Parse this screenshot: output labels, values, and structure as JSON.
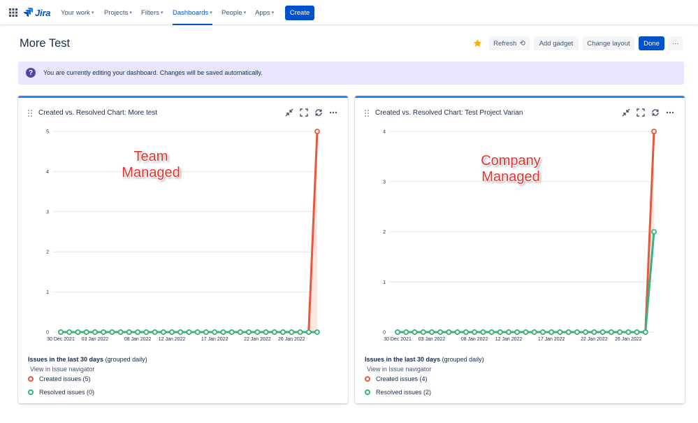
{
  "nav": {
    "logo": "Jira",
    "items": [
      "Your work",
      "Projects",
      "Filters",
      "Dashboards",
      "People",
      "Apps"
    ],
    "active": "Dashboards",
    "create": "Create"
  },
  "header": {
    "title": "More Test",
    "refresh": "Refresh",
    "add_gadget": "Add gadget",
    "change_layout": "Change layout",
    "done": "Done",
    "more": "···"
  },
  "banner": {
    "text": "You are currently editing your dashboard. Changes will be saved automatically."
  },
  "colors": {
    "created": "#e8573d",
    "resolved": "#36b37e",
    "accent": "#0052cc"
  },
  "gadgets": [
    {
      "title": "Created vs. Resolved Chart: More test",
      "annotation": [
        "Team",
        "Managed"
      ],
      "summary_bold": "Issues in the last 30 days",
      "summary_rest": "(grouped daily)",
      "navigator_link": "View in Issue navigator",
      "legend": [
        "Created issues (5)",
        "Resolved issues (0)"
      ],
      "chart_data": {
        "type": "line",
        "x_tick_labels": [
          "30 Dec 2021",
          "03 Jan 2022",
          "08 Jan 2022",
          "12 Jan 2022",
          "17 Jan 2022",
          "22 Jan 2022",
          "26 Jan 2022"
        ],
        "ylim": [
          0,
          5
        ],
        "y_ticks": [
          0,
          1,
          2,
          3,
          4,
          5
        ],
        "series": [
          {
            "name": "Created issues",
            "values": [
              0,
              0,
              0,
              0,
              0,
              0,
              0,
              0,
              0,
              0,
              0,
              0,
              0,
              0,
              0,
              0,
              0,
              0,
              0,
              0,
              0,
              0,
              0,
              0,
              0,
              0,
              0,
              0,
              0,
              0,
              5
            ]
          },
          {
            "name": "Resolved issues",
            "values": [
              0,
              0,
              0,
              0,
              0,
              0,
              0,
              0,
              0,
              0,
              0,
              0,
              0,
              0,
              0,
              0,
              0,
              0,
              0,
              0,
              0,
              0,
              0,
              0,
              0,
              0,
              0,
              0,
              0,
              0,
              0
            ]
          }
        ]
      }
    },
    {
      "title": "Created vs. Resolved Chart: Test Project Varian",
      "annotation": [
        "Company",
        "Managed"
      ],
      "summary_bold": "Issues in the last 30 days",
      "summary_rest": "(grouped daily)",
      "navigator_link": "View in Issue navigator",
      "legend": [
        "Created issues (4)",
        "Resolved issues (2)"
      ],
      "chart_data": {
        "type": "line",
        "x_tick_labels": [
          "30 Dec 2021",
          "03 Jan 2022",
          "08 Jan 2022",
          "12 Jan 2022",
          "17 Jan 2022",
          "22 Jan 2022",
          "26 Jan 2022"
        ],
        "ylim": [
          0,
          4
        ],
        "y_ticks": [
          0,
          1,
          2,
          3,
          4
        ],
        "series": [
          {
            "name": "Created issues",
            "values": [
              0,
              0,
              0,
              0,
              0,
              0,
              0,
              0,
              0,
              0,
              0,
              0,
              0,
              0,
              0,
              0,
              0,
              0,
              0,
              0,
              0,
              0,
              0,
              0,
              0,
              0,
              0,
              0,
              0,
              0,
              4
            ]
          },
          {
            "name": "Resolved issues",
            "values": [
              0,
              0,
              0,
              0,
              0,
              0,
              0,
              0,
              0,
              0,
              0,
              0,
              0,
              0,
              0,
              0,
              0,
              0,
              0,
              0,
              0,
              0,
              0,
              0,
              0,
              0,
              0,
              0,
              0,
              0,
              2
            ]
          }
        ]
      }
    }
  ]
}
